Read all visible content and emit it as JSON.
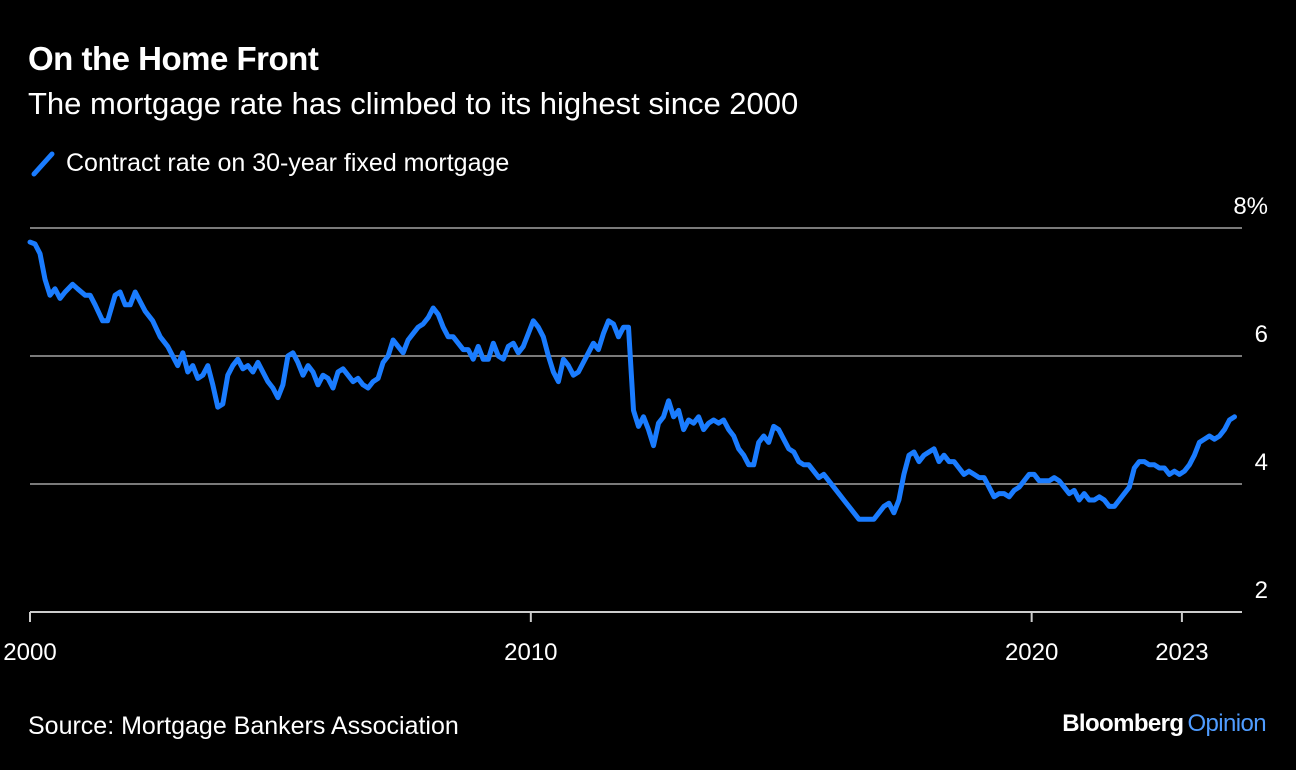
{
  "title": "On the Home Front",
  "subtitle": "The mortgage rate has climbed to its highest since 2000",
  "legend_label": "Contract rate on 30-year fixed mortgage",
  "source": "Source: Mortgage Bankers Association",
  "brand": {
    "name": "Bloomberg",
    "suffix": "Opinion"
  },
  "colors": {
    "background": "#000000",
    "line": "#1a7cff",
    "grid": "#7a7a7a",
    "text": "#ffffff",
    "brand_accent": "#4f9cff"
  },
  "chart_data": {
    "type": "line",
    "title": "On the Home Front",
    "subtitle": "The mortgage rate has climbed to its highest since 2000",
    "xlabel": "",
    "ylabel": "",
    "xlim": [
      2000,
      2024.2
    ],
    "ylim": [
      2,
      8
    ],
    "grid": true,
    "legend_position": "top-left",
    "x_ticks": [
      {
        "value": 2000,
        "label": "2000"
      },
      {
        "value": 2010,
        "label": "2010"
      },
      {
        "value": 2020,
        "label": "2020"
      },
      {
        "value": 2023,
        "label": "2023"
      }
    ],
    "y_ticks": [
      {
        "value": 2,
        "label": "2"
      },
      {
        "value": 4,
        "label": "4"
      },
      {
        "value": 6,
        "label": "6"
      },
      {
        "value": 8,
        "label": "8%"
      }
    ],
    "series": [
      {
        "name": "Contract rate on 30-year fixed mortgage",
        "color": "#1a7cff",
        "points": [
          [
            2000.0,
            7.78
          ],
          [
            2000.1,
            7.75
          ],
          [
            2000.2,
            7.6
          ],
          [
            2000.3,
            7.2
          ],
          [
            2000.4,
            6.95
          ],
          [
            2000.5,
            7.05
          ],
          [
            2000.6,
            6.9
          ],
          [
            2000.7,
            7.0
          ],
          [
            2000.85,
            7.12
          ],
          [
            2000.95,
            7.05
          ],
          [
            2001.1,
            6.95
          ],
          [
            2001.2,
            6.95
          ],
          [
            2001.3,
            6.8
          ],
          [
            2001.45,
            6.55
          ],
          [
            2001.55,
            6.55
          ],
          [
            2001.7,
            6.95
          ],
          [
            2001.8,
            7.0
          ],
          [
            2001.9,
            6.8
          ],
          [
            2002.0,
            6.8
          ],
          [
            2002.1,
            7.0
          ],
          [
            2002.2,
            6.85
          ],
          [
            2002.3,
            6.7
          ],
          [
            2002.45,
            6.55
          ],
          [
            2002.6,
            6.3
          ],
          [
            2002.75,
            6.15
          ],
          [
            2002.85,
            6.0
          ],
          [
            2002.95,
            5.85
          ],
          [
            2003.05,
            6.05
          ],
          [
            2003.15,
            5.75
          ],
          [
            2003.25,
            5.85
          ],
          [
            2003.35,
            5.65
          ],
          [
            2003.45,
            5.7
          ],
          [
            2003.55,
            5.85
          ],
          [
            2003.65,
            5.55
          ],
          [
            2003.75,
            5.2
          ],
          [
            2003.85,
            5.25
          ],
          [
            2003.95,
            5.7
          ],
          [
            2004.05,
            5.85
          ],
          [
            2004.15,
            5.95
          ],
          [
            2004.25,
            5.8
          ],
          [
            2004.35,
            5.85
          ],
          [
            2004.45,
            5.75
          ],
          [
            2004.55,
            5.9
          ],
          [
            2004.65,
            5.75
          ],
          [
            2004.75,
            5.6
          ],
          [
            2004.85,
            5.5
          ],
          [
            2004.95,
            5.35
          ],
          [
            2005.05,
            5.55
          ],
          [
            2005.15,
            6.0
          ],
          [
            2005.25,
            6.05
          ],
          [
            2005.35,
            5.9
          ],
          [
            2005.45,
            5.7
          ],
          [
            2005.55,
            5.85
          ],
          [
            2005.65,
            5.75
          ],
          [
            2005.75,
            5.55
          ],
          [
            2005.85,
            5.7
          ],
          [
            2005.95,
            5.65
          ],
          [
            2006.05,
            5.5
          ],
          [
            2006.15,
            5.75
          ],
          [
            2006.25,
            5.8
          ],
          [
            2006.35,
            5.7
          ],
          [
            2006.45,
            5.6
          ],
          [
            2006.55,
            5.65
          ],
          [
            2006.65,
            5.55
          ],
          [
            2006.75,
            5.5
          ],
          [
            2006.85,
            5.6
          ],
          [
            2006.95,
            5.65
          ],
          [
            2007.05,
            5.9
          ],
          [
            2007.15,
            6.0
          ],
          [
            2007.25,
            6.25
          ],
          [
            2007.35,
            6.15
          ],
          [
            2007.45,
            6.05
          ],
          [
            2007.55,
            6.25
          ],
          [
            2007.65,
            6.35
          ],
          [
            2007.75,
            6.45
          ],
          [
            2007.85,
            6.5
          ],
          [
            2007.95,
            6.6
          ],
          [
            2008.05,
            6.75
          ],
          [
            2008.15,
            6.65
          ],
          [
            2008.25,
            6.45
          ],
          [
            2008.35,
            6.3
          ],
          [
            2008.45,
            6.3
          ],
          [
            2008.55,
            6.2
          ],
          [
            2008.65,
            6.1
          ],
          [
            2008.75,
            6.1
          ],
          [
            2008.85,
            5.95
          ],
          [
            2008.95,
            6.15
          ],
          [
            2009.05,
            5.95
          ],
          [
            2009.15,
            5.95
          ],
          [
            2009.25,
            6.2
          ],
          [
            2009.35,
            6.0
          ],
          [
            2009.45,
            5.95
          ],
          [
            2009.55,
            6.15
          ],
          [
            2009.65,
            6.2
          ],
          [
            2009.75,
            6.05
          ],
          [
            2009.85,
            6.15
          ],
          [
            2009.95,
            6.35
          ],
          [
            2010.05,
            6.55
          ],
          [
            2010.15,
            6.45
          ],
          [
            2010.25,
            6.3
          ],
          [
            2010.35,
            6.0
          ],
          [
            2010.45,
            5.75
          ],
          [
            2010.55,
            5.6
          ],
          [
            2010.65,
            5.95
          ],
          [
            2010.75,
            5.85
          ],
          [
            2010.85,
            5.7
          ],
          [
            2010.95,
            5.75
          ],
          [
            2011.05,
            5.9
          ],
          [
            2011.15,
            6.05
          ],
          [
            2011.25,
            6.2
          ],
          [
            2011.35,
            6.1
          ],
          [
            2011.45,
            6.35
          ],
          [
            2011.55,
            6.55
          ],
          [
            2011.65,
            6.5
          ],
          [
            2011.75,
            6.3
          ],
          [
            2011.85,
            6.45
          ],
          [
            2011.95,
            6.45
          ],
          [
            2012.05,
            5.15
          ],
          [
            2012.15,
            4.9
          ],
          [
            2012.25,
            5.05
          ],
          [
            2012.35,
            4.85
          ],
          [
            2012.45,
            4.6
          ],
          [
            2012.55,
            4.95
          ],
          [
            2012.65,
            5.05
          ],
          [
            2012.75,
            5.3
          ],
          [
            2012.85,
            5.05
          ],
          [
            2012.95,
            5.15
          ],
          [
            2013.05,
            4.85
          ],
          [
            2013.15,
            5.0
          ],
          [
            2013.25,
            4.95
          ],
          [
            2013.35,
            5.05
          ],
          [
            2013.45,
            4.85
          ],
          [
            2013.55,
            4.95
          ],
          [
            2013.65,
            5.0
          ],
          [
            2013.75,
            4.95
          ],
          [
            2013.85,
            5.0
          ],
          [
            2013.95,
            4.85
          ],
          [
            2014.05,
            4.75
          ],
          [
            2014.15,
            4.55
          ],
          [
            2014.25,
            4.45
          ],
          [
            2014.35,
            4.3
          ],
          [
            2014.45,
            4.3
          ],
          [
            2014.55,
            4.65
          ],
          [
            2014.65,
            4.75
          ],
          [
            2014.75,
            4.65
          ],
          [
            2014.85,
            4.9
          ],
          [
            2014.95,
            4.85
          ],
          [
            2015.05,
            4.7
          ],
          [
            2015.15,
            4.55
          ],
          [
            2015.25,
            4.5
          ],
          [
            2015.35,
            4.35
          ],
          [
            2015.45,
            4.3
          ],
          [
            2015.55,
            4.3
          ],
          [
            2015.65,
            4.2
          ],
          [
            2015.75,
            4.1
          ],
          [
            2015.85,
            4.15
          ],
          [
            2015.95,
            4.05
          ],
          [
            2016.05,
            3.95
          ],
          [
            2016.15,
            3.85
          ],
          [
            2016.25,
            3.75
          ],
          [
            2016.35,
            3.65
          ],
          [
            2016.45,
            3.55
          ],
          [
            2016.55,
            3.45
          ],
          [
            2016.65,
            3.45
          ],
          [
            2016.75,
            3.45
          ],
          [
            2016.85,
            3.45
          ],
          [
            2016.95,
            3.55
          ],
          [
            2017.05,
            3.65
          ],
          [
            2017.15,
            3.7
          ],
          [
            2017.25,
            3.55
          ],
          [
            2017.35,
            3.75
          ],
          [
            2017.45,
            4.15
          ],
          [
            2017.55,
            4.45
          ],
          [
            2017.65,
            4.5
          ],
          [
            2017.75,
            4.35
          ],
          [
            2017.85,
            4.45
          ],
          [
            2017.95,
            4.5
          ],
          [
            2018.05,
            4.55
          ],
          [
            2018.15,
            4.35
          ],
          [
            2018.25,
            4.45
          ],
          [
            2018.35,
            4.35
          ],
          [
            2018.45,
            4.35
          ],
          [
            2018.55,
            4.25
          ],
          [
            2018.65,
            4.15
          ],
          [
            2018.75,
            4.2
          ],
          [
            2018.85,
            4.15
          ],
          [
            2018.95,
            4.1
          ],
          [
            2019.05,
            4.1
          ],
          [
            2019.15,
            3.95
          ],
          [
            2019.25,
            3.8
          ],
          [
            2019.35,
            3.85
          ],
          [
            2019.45,
            3.85
          ],
          [
            2019.55,
            3.8
          ],
          [
            2019.65,
            3.9
          ],
          [
            2019.75,
            3.95
          ],
          [
            2019.85,
            4.05
          ],
          [
            2019.95,
            4.15
          ],
          [
            2020.05,
            4.15
          ],
          [
            2020.15,
            4.05
          ],
          [
            2020.25,
            4.05
          ],
          [
            2020.35,
            4.05
          ],
          [
            2020.45,
            4.1
          ],
          [
            2020.55,
            4.05
          ],
          [
            2020.65,
            3.95
          ],
          [
            2020.75,
            3.85
          ],
          [
            2020.85,
            3.9
          ],
          [
            2020.95,
            3.75
          ],
          [
            2021.05,
            3.85
          ],
          [
            2021.15,
            3.75
          ],
          [
            2021.25,
            3.75
          ],
          [
            2021.35,
            3.8
          ],
          [
            2021.45,
            3.75
          ],
          [
            2021.55,
            3.65
          ],
          [
            2021.65,
            3.65
          ],
          [
            2021.75,
            3.75
          ],
          [
            2021.85,
            3.85
          ],
          [
            2021.95,
            3.95
          ],
          [
            2022.05,
            4.25
          ],
          [
            2022.15,
            4.35
          ],
          [
            2022.25,
            4.35
          ],
          [
            2022.35,
            4.3
          ],
          [
            2022.45,
            4.3
          ],
          [
            2022.55,
            4.25
          ],
          [
            2022.65,
            4.25
          ],
          [
            2022.75,
            4.15
          ],
          [
            2022.85,
            4.2
          ],
          [
            2022.95,
            4.15
          ],
          [
            2023.05,
            4.2
          ],
          [
            2023.15,
            4.3
          ],
          [
            2023.25,
            4.45
          ],
          [
            2023.35,
            4.65
          ],
          [
            2023.45,
            4.7
          ],
          [
            2023.55,
            4.75
          ],
          [
            2023.65,
            4.7
          ],
          [
            2023.75,
            4.75
          ],
          [
            2023.85,
            4.85
          ],
          [
            2023.95,
            5.0
          ],
          [
            2024.05,
            5.05
          ]
        ]
      }
    ]
  }
}
